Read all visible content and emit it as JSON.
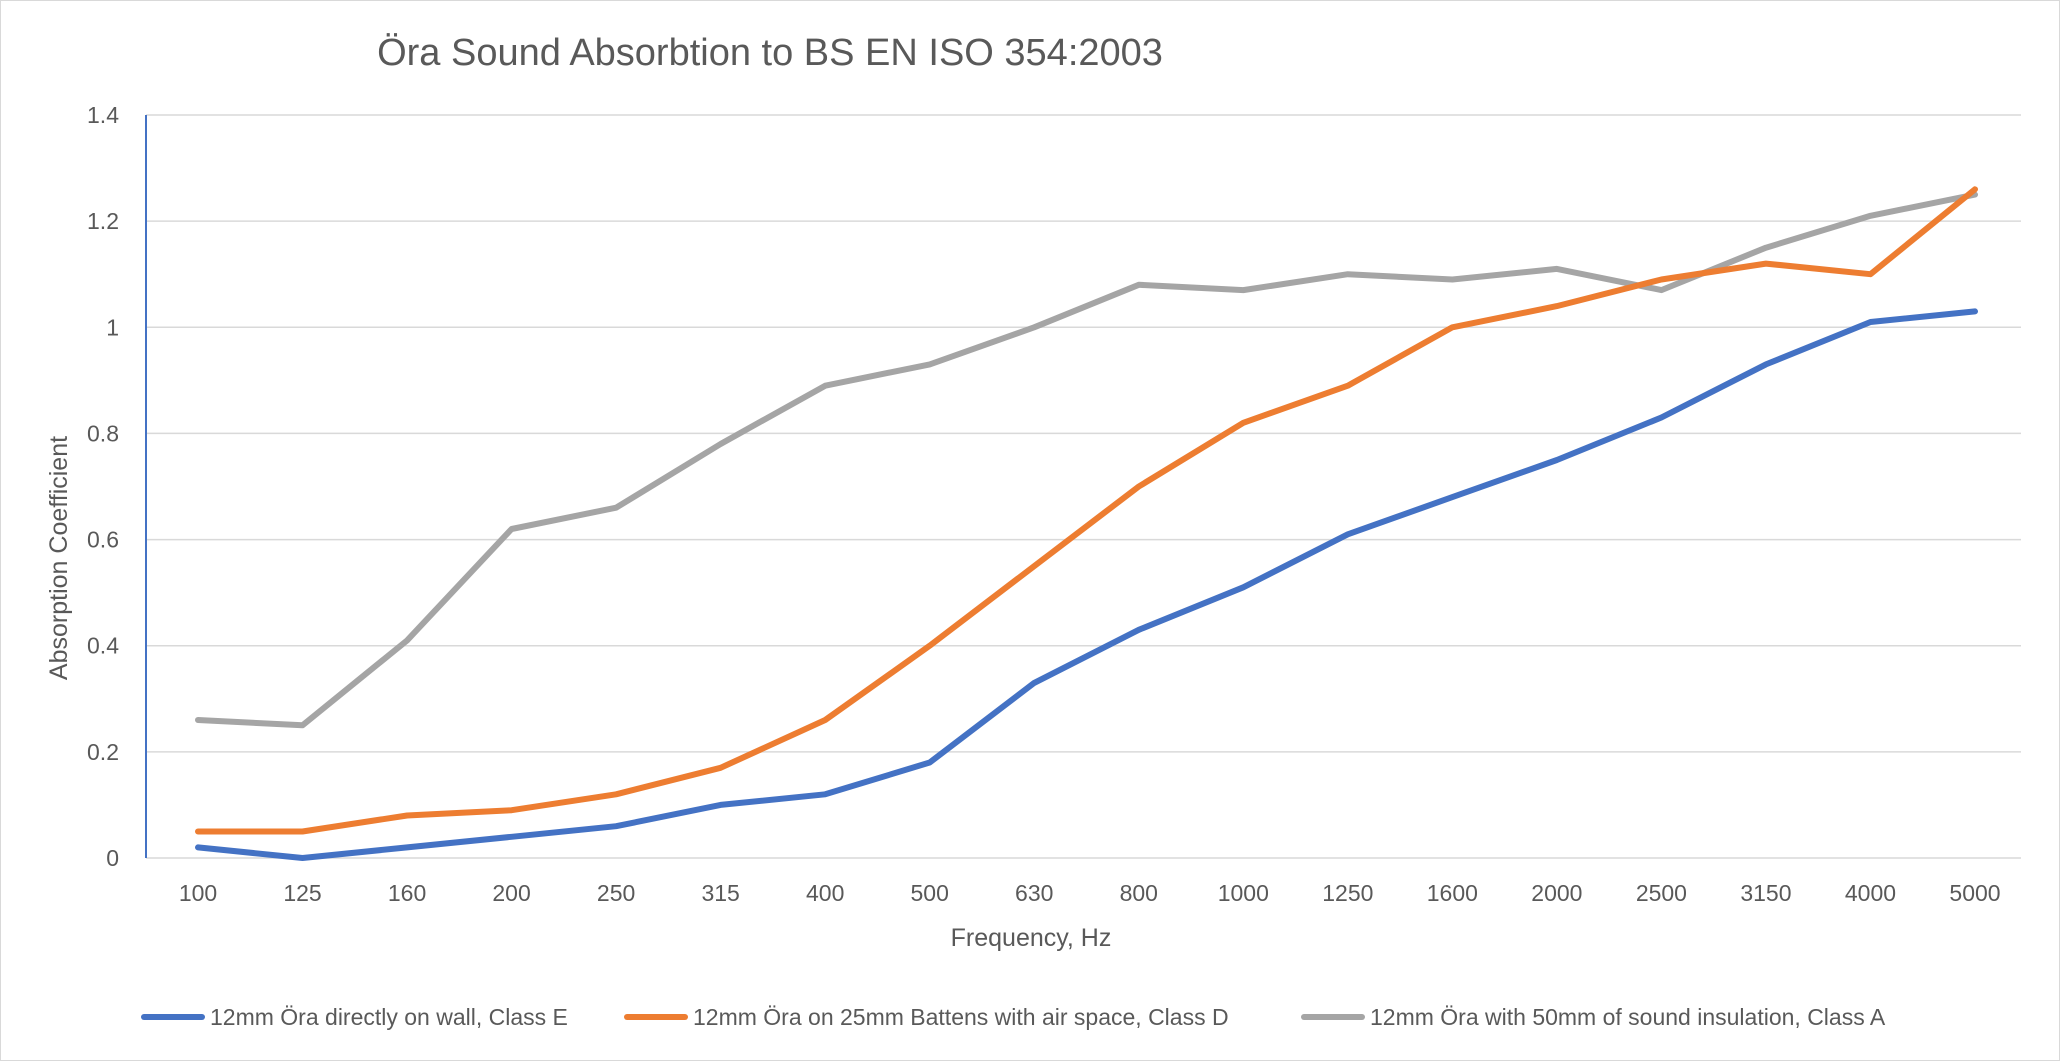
{
  "chart_data": {
    "type": "line",
    "title": "Öra Sound Absorbtion to BS EN ISO 354:2003",
    "xlabel": "Frequency, Hz",
    "ylabel": "Absorption Coefficient",
    "categories": [
      "100",
      "125",
      "160",
      "200",
      "250",
      "315",
      "400",
      "500",
      "630",
      "800",
      "1000",
      "1250",
      "1600",
      "2000",
      "2500",
      "3150",
      "4000",
      "5000"
    ],
    "ylim": [
      0,
      1.4
    ],
    "yticks": [
      "0",
      "0.2",
      "0.4",
      "0.6",
      "0.8",
      "1",
      "1.2",
      "1.4"
    ],
    "grid": true,
    "legend_position": "bottom",
    "series": [
      {
        "name": "12mm Öra directly on wall, Class E",
        "color": "#4472C4",
        "values": [
          0.02,
          0.0,
          0.02,
          0.04,
          0.06,
          0.1,
          0.12,
          0.18,
          0.33,
          0.43,
          0.51,
          0.61,
          0.68,
          0.75,
          0.83,
          0.93,
          1.01,
          1.03
        ]
      },
      {
        "name": "12mm Öra on 25mm Battens with air space, Class D",
        "color": "#ED7D31",
        "values": [
          0.05,
          0.05,
          0.08,
          0.09,
          0.12,
          0.17,
          0.26,
          0.4,
          0.55,
          0.7,
          0.82,
          0.89,
          1.0,
          1.04,
          1.09,
          1.12,
          1.1,
          1.26
        ]
      },
      {
        "name": "12mm Öra with 50mm of sound insulation, Class A",
        "color": "#A5A5A5",
        "values": [
          0.26,
          0.25,
          0.41,
          0.62,
          0.66,
          0.78,
          0.89,
          0.93,
          1.0,
          1.08,
          1.07,
          1.1,
          1.09,
          1.11,
          1.07,
          1.15,
          1.21,
          1.25
        ]
      }
    ]
  }
}
